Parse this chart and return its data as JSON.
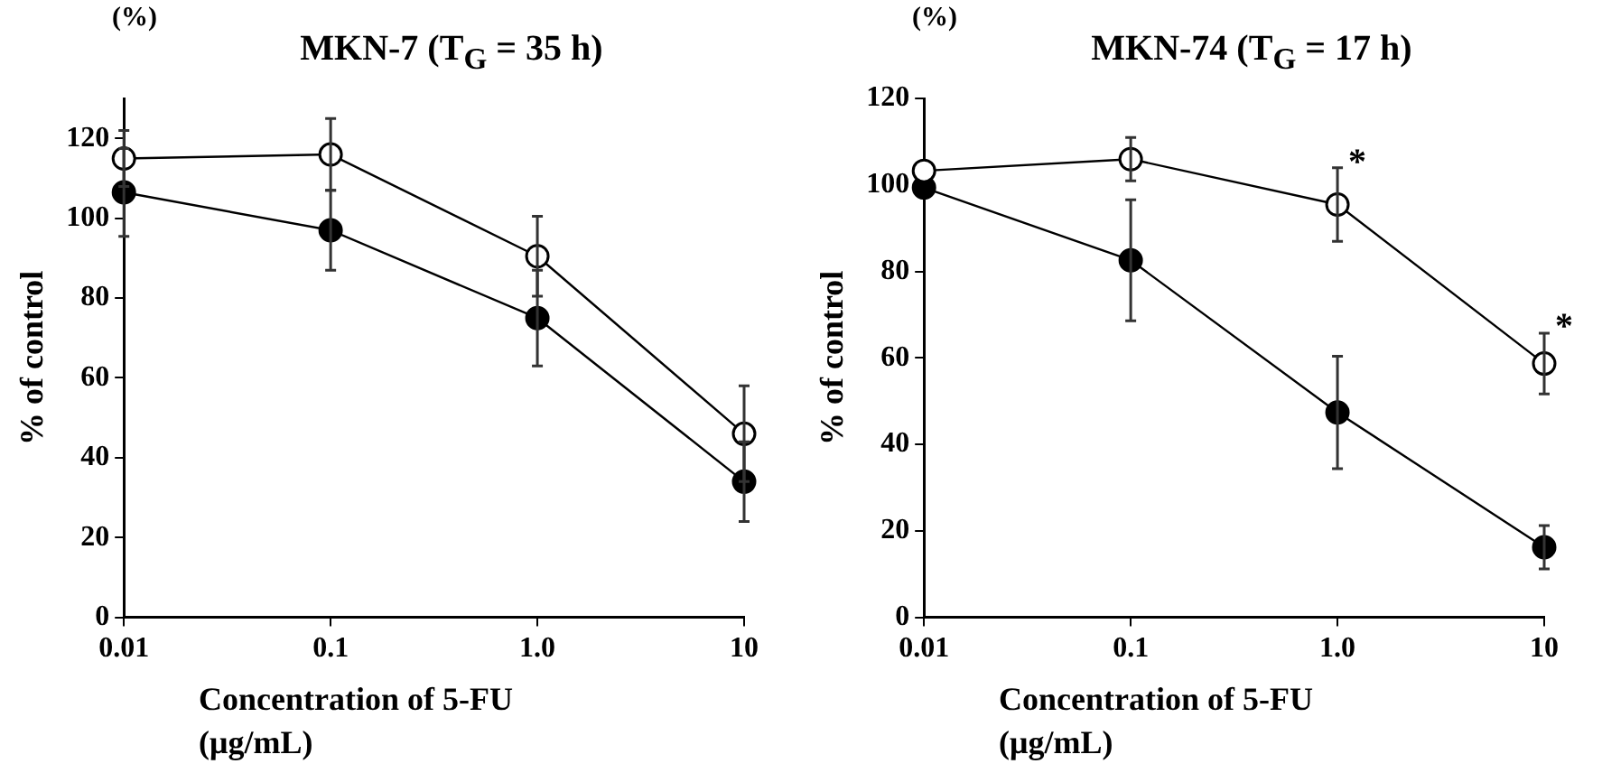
{
  "chart_data": [
    {
      "type": "line",
      "title": "MKN-7 (T$_{G}$ = 35 h)",
      "xlabel": "Concentration of 5-FU (μg/mL)",
      "ylabel": "% of control",
      "annotations": [
        "(%)"
      ],
      "log": "x",
      "x": [
        0.01,
        0.1,
        1,
        10
      ],
      "xlim": [
        0.01,
        10
      ],
      "xticks": [
        0.01,
        0.1,
        {
          "value": 1,
          "label": "1.0"
        },
        10
      ],
      "ylim": [
        0,
        130
      ],
      "yticks": [
        0,
        20,
        40,
        60,
        80,
        100,
        120
      ],
      "legend": false,
      "marker": "circle",
      "line_style": "solid",
      "series": [
        {
          "color": "#ffffff",
          "values": [
            115,
            116,
            90.5,
            46
          ],
          "errors": [
            7,
            9,
            10,
            12
          ]
        },
        {
          "color": "#000000",
          "values": [
            106.5,
            97,
            75,
            34
          ],
          "errors": [
            11,
            10,
            12,
            10
          ]
        }
      ]
    },
    {
      "type": "line",
      "title": "MKN-74 (T$_{G}$ = 17 h)",
      "xlabel": "Concentration of 5-FU (μg/mL)",
      "ylabel": "% of control",
      "annotations": [
        "(%)",
        {
          "text": "*",
          "x": 1,
          "y": 104
        },
        {
          "text": "*",
          "x": 10,
          "y": 66
        }
      ],
      "log": "x",
      "x": [
        0.01,
        0.1,
        1,
        10
      ],
      "xlim": [
        0.01,
        10
      ],
      "xticks": [
        0.01,
        0.1,
        {
          "value": 1,
          "label": "1.0"
        },
        10
      ],
      "ylim": [
        0,
        120
      ],
      "yticks": [
        0,
        20,
        40,
        60,
        80,
        100,
        120
      ],
      "legend": false,
      "marker": "circle",
      "line_style": "solid",
      "series": [
        {
          "color": "#ffffff",
          "values": [
            103.3,
            106,
            95.5,
            58.7
          ],
          "errors": [
            null,
            5,
            8.5,
            7
          ]
        },
        {
          "color": "#000000",
          "values": [
            99.4,
            82.6,
            47.4,
            16.2
          ],
          "errors": [
            null,
            14,
            13,
            5
          ]
        }
      ]
    }
  ]
}
